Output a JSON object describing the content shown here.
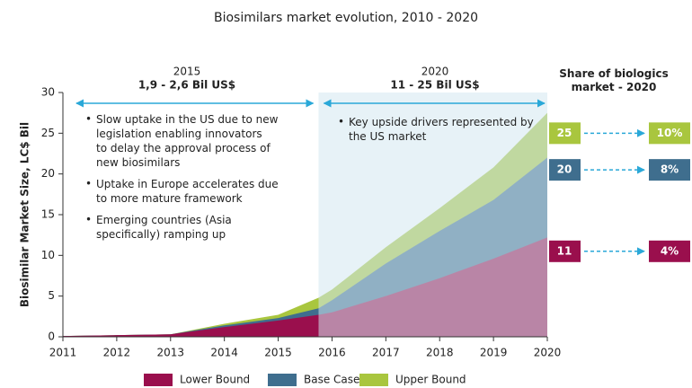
{
  "chart_data": {
    "type": "area",
    "title": "Biosimilars market evolution, 2010 - 2020",
    "y_label": "Biosimilar Market Size, LC$ Bil",
    "x": [
      2011,
      2012,
      2013,
      2014,
      2015,
      2015.75,
      2016,
      2017,
      2018,
      2019,
      2020
    ],
    "series": [
      {
        "name": "Upper Bound",
        "color": "#a9c63e",
        "values": [
          0.1,
          0.2,
          0.3,
          1.6,
          2.7,
          4.8,
          5.8,
          11.0,
          15.8,
          20.8,
          27.5
        ]
      },
      {
        "name": "Base Case",
        "color": "#3f6e8e",
        "values": [
          0.1,
          0.2,
          0.3,
          1.4,
          2.3,
          3.5,
          4.5,
          9.0,
          13.0,
          16.8,
          22.0
        ]
      },
      {
        "name": "Lower Bound",
        "color": "#9a0f4d",
        "values": [
          0.1,
          0.2,
          0.3,
          1.2,
          2.0,
          2.7,
          3.0,
          5.0,
          7.2,
          9.6,
          12.2
        ]
      }
    ],
    "legend_order": [
      2,
      1,
      0
    ],
    "xlim": [
      2011,
      2020
    ],
    "xticks": [
      2011,
      2012,
      2013,
      2014,
      2015,
      2016,
      2017,
      2018,
      2019,
      2020
    ],
    "ylim": [
      0,
      30
    ],
    "yticks": [
      0,
      5,
      10,
      15,
      20,
      25,
      30
    ],
    "highlight_span": [
      2015.75,
      2020
    ],
    "periods": [
      {
        "year": "2015",
        "range": "1,9 - 2,6 Bil US$",
        "span": [
          2011.25,
          2015.65
        ],
        "bullets": [
          "Slow uptake in the US due to new legislation enabling innovators to delay the approval process of new biosimilars",
          "Uptake in Europe accelerates due to more mature framework",
          "Emerging countries (Asia specifically) ramping up"
        ]
      },
      {
        "year": "2020",
        "range": "11 - 25 Bil US$",
        "span": [
          2015.85,
          2019.95
        ],
        "bullets": [
          "Key upside drivers represented by the US market"
        ]
      }
    ],
    "share_title": "Share of biologics market - 2020",
    "end_labels": [
      {
        "value": "25",
        "share": "10%",
        "color": "#a9c63e",
        "y": 25
      },
      {
        "value": "20",
        "share": "8%",
        "color": "#3f6e8e",
        "y": 20.5
      },
      {
        "value": "11",
        "share": "4%",
        "color": "#9a0f4d",
        "y": 10.5
      }
    ]
  }
}
